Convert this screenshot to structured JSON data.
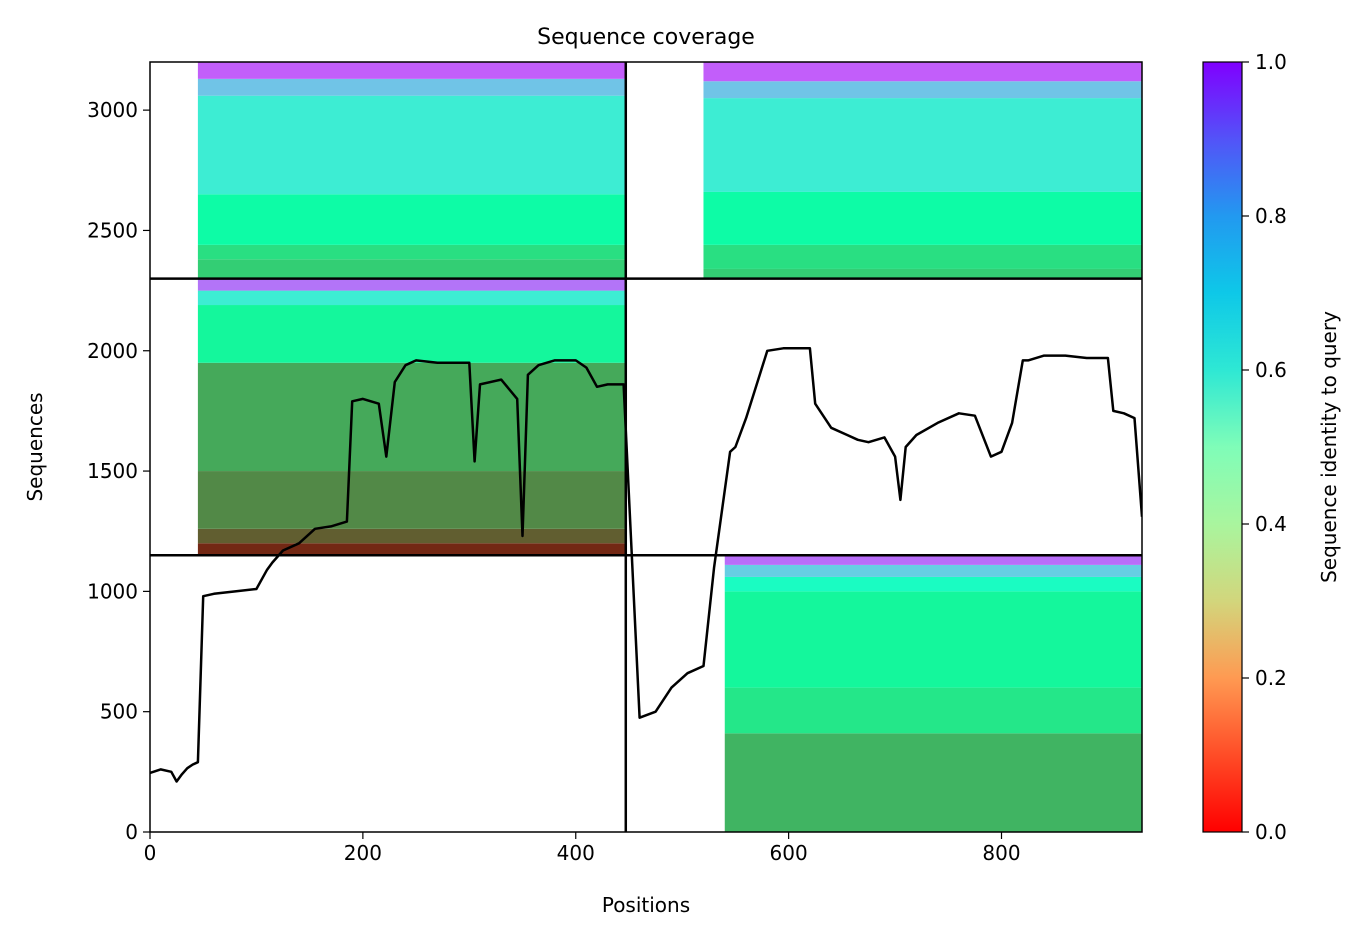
{
  "chart_data": {
    "type": "heatmap",
    "title": "Sequence coverage",
    "xlabel": "Positions",
    "ylabel": "Sequences",
    "colorbar_label": "Sequence identity to query",
    "xlim": [
      0,
      932
    ],
    "ylim": [
      0,
      3200
    ],
    "xticks": [
      0,
      200,
      400,
      600,
      800
    ],
    "yticks": [
      0,
      500,
      1000,
      1500,
      2000,
      2500,
      3000
    ],
    "colorbar_ticks": [
      0.0,
      0.2,
      0.4,
      0.6,
      0.8,
      1.0
    ],
    "colorbar_tick_labels": [
      "0.0",
      "0.2",
      "0.4",
      "0.6",
      "0.8",
      "1.0"
    ],
    "colormap": "rainbow_r",
    "grid": false,
    "chain_boundaries": {
      "positions": [
        447
      ],
      "sequences": [
        1150,
        2300
      ]
    },
    "coverage_profile": {
      "x": [
        0,
        10,
        20,
        25,
        30,
        35,
        40,
        45,
        50,
        60,
        80,
        100,
        110,
        115,
        125,
        140,
        155,
        170,
        185,
        190,
        200,
        215,
        222,
        230,
        240,
        250,
        270,
        290,
        300,
        305,
        310,
        330,
        345,
        350,
        355,
        365,
        380,
        400,
        410,
        420,
        430,
        445,
        460,
        475,
        490,
        505,
        520,
        530,
        545,
        550,
        560,
        580,
        595,
        600,
        610,
        620,
        625,
        640,
        655,
        665,
        675,
        690,
        700,
        705,
        710,
        720,
        740,
        760,
        775,
        790,
        800,
        810,
        820,
        825,
        840,
        860,
        880,
        900,
        905,
        915,
        925,
        932
      ],
      "y": [
        245,
        260,
        250,
        210,
        240,
        265,
        280,
        290,
        980,
        990,
        1000,
        1010,
        1090,
        1120,
        1170,
        1200,
        1260,
        1270,
        1290,
        1790,
        1800,
        1780,
        1560,
        1870,
        1940,
        1960,
        1950,
        1950,
        1950,
        1540,
        1860,
        1880,
        1800,
        1230,
        1900,
        1940,
        1960,
        1960,
        1930,
        1850,
        1860,
        1860,
        475,
        500,
        600,
        660,
        690,
        1100,
        1580,
        1600,
        1720,
        2000,
        2010,
        2010,
        2010,
        2010,
        1780,
        1680,
        1650,
        1630,
        1620,
        1640,
        1560,
        1380,
        1600,
        1650,
        1700,
        1740,
        1730,
        1560,
        1580,
        1700,
        1960,
        1960,
        1980,
        1980,
        1970,
        1970,
        1750,
        1740,
        1720,
        1310
      ]
    },
    "identity_bands": {
      "note": "sequence index ranges (y) and their approximate identity values",
      "panel_top_left": [
        [
          2300,
          2380,
          0.3
        ],
        [
          2380,
          2440,
          0.34
        ],
        [
          2440,
          2650,
          0.45
        ],
        [
          2650,
          3060,
          0.62
        ],
        [
          3060,
          3130,
          0.72
        ],
        [
          3130,
          3200,
          0.88
        ]
      ],
      "panel_top_right": [
        [
          2300,
          2340,
          0.3
        ],
        [
          2340,
          2440,
          0.34
        ],
        [
          2440,
          2660,
          0.45
        ],
        [
          2660,
          3050,
          0.62
        ],
        [
          3050,
          3120,
          0.72
        ],
        [
          3120,
          3200,
          0.88
        ]
      ],
      "panel_mid_left": [
        [
          1150,
          1200,
          0.05
        ],
        [
          1200,
          1260,
          0.12
        ],
        [
          1260,
          1500,
          0.18
        ],
        [
          1500,
          1950,
          0.23
        ],
        [
          1950,
          2190,
          0.42
        ],
        [
          2190,
          2250,
          0.62
        ],
        [
          2250,
          2300,
          0.85
        ]
      ],
      "panel_bottom_right": [
        [
          0,
          410,
          0.25
        ],
        [
          410,
          600,
          0.36
        ],
        [
          600,
          1000,
          0.42
        ],
        [
          1000,
          1060,
          0.55
        ],
        [
          1060,
          1110,
          0.7
        ],
        [
          1110,
          1150,
          0.86
        ]
      ]
    }
  }
}
